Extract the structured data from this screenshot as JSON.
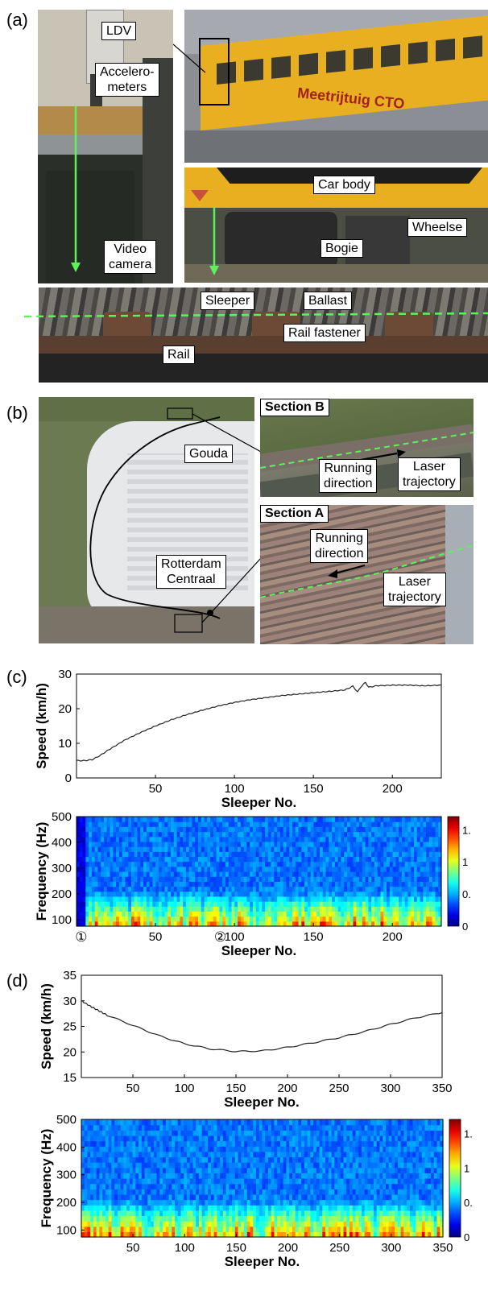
{
  "panels": {
    "a": "(a)",
    "b": "(b)",
    "c": "(c)",
    "d": "(d)"
  },
  "panel_a": {
    "labels": {
      "ldv": "LDV",
      "accelerometers": "Accelero-\nmeters",
      "video_camera": "Video\ncamera",
      "car_body": "Car body",
      "bogie": "Bogie",
      "wheelset": "Wheelse",
      "sleeper": "Sleeper",
      "ballast": "Ballast",
      "rail_fastener": "Rail fastener",
      "rail": "Rail",
      "train_text": "Meetrijtuig CTO"
    },
    "colors": {
      "train_yellow": "#e8b020",
      "laser_green": "#5cf25c"
    }
  },
  "panel_b": {
    "labels": {
      "gouda": "Gouda",
      "rotterdam": "Rotterdam\nCentraal",
      "section_b": "Section B",
      "section_a": "Section A",
      "running_b": "Running\ndirection",
      "laser_b": "Laser\ntrajectory",
      "running_a": "Running\ndirection",
      "laser_a": "Laser\ntrajectory"
    }
  },
  "chart_data": [
    {
      "type": "line",
      "id": "c-speed",
      "xlabel": "Sleeper No.",
      "ylabel": "Speed (km/h)",
      "xlim": [
        0,
        231
      ],
      "ylim": [
        0,
        30
      ],
      "xticks": [
        50,
        100,
        150,
        200
      ],
      "yticks": [
        0,
        10,
        20,
        30
      ],
      "series": [
        {
          "x": [
            0,
            5,
            10,
            15,
            20,
            30,
            40,
            50,
            60,
            70,
            80,
            90,
            100,
            110,
            120,
            130,
            140,
            150,
            160,
            170,
            175,
            178,
            180,
            183,
            185,
            190,
            200,
            210,
            220,
            231
          ],
          "y": [
            5,
            5,
            5.3,
            6.5,
            8,
            10.8,
            13,
            15,
            16.8,
            18.3,
            19.6,
            20.8,
            21.8,
            22.6,
            23.2,
            23.8,
            24.2,
            24.6,
            25,
            25.4,
            26.5,
            24.8,
            26.3,
            27.6,
            26.2,
            26.6,
            26.8,
            26.8,
            26.6,
            26.8
          ]
        }
      ]
    },
    {
      "type": "heatmap",
      "id": "c-spectrogram",
      "xlabel": "Sleeper No.",
      "ylabel": "Frequency (Hz)",
      "xlim": [
        0,
        231
      ],
      "ylim": [
        75,
        500
      ],
      "xticks": [
        50,
        100,
        150,
        200
      ],
      "yticks": [
        100,
        200,
        300,
        400,
        500
      ],
      "colorbar_ticks": [
        "0",
        "0.",
        "1",
        "1."
      ],
      "markers": [
        {
          "label": "①",
          "x": 3
        },
        {
          "label": "②",
          "x": 91
        }
      ]
    },
    {
      "type": "line",
      "id": "d-speed",
      "xlabel": "Sleeper No.",
      "ylabel": "Speed (km/h)",
      "xlim": [
        0,
        350
      ],
      "ylim": [
        15,
        35
      ],
      "xticks": [
        50,
        100,
        150,
        200,
        250,
        300,
        350
      ],
      "yticks": [
        15,
        20,
        25,
        30,
        35
      ],
      "series": [
        {
          "x": [
            0,
            10,
            25,
            50,
            75,
            100,
            125,
            150,
            175,
            200,
            225,
            250,
            275,
            300,
            325,
            350
          ],
          "y": [
            30,
            28.8,
            27.2,
            25.2,
            23.2,
            21.6,
            20.6,
            20.1,
            20.2,
            20.9,
            21.8,
            22.8,
            24,
            25.4,
            26.7,
            27.7
          ]
        }
      ]
    },
    {
      "type": "heatmap",
      "id": "d-spectrogram",
      "xlabel": "Sleeper No.",
      "ylabel": "Frequency (Hz)",
      "xlim": [
        0,
        350
      ],
      "ylim": [
        75,
        500
      ],
      "xticks": [
        50,
        100,
        150,
        200,
        250,
        300,
        350
      ],
      "yticks": [
        100,
        200,
        300,
        400,
        500
      ],
      "colorbar_ticks": [
        "0",
        "0.",
        "1",
        "1."
      ]
    }
  ]
}
